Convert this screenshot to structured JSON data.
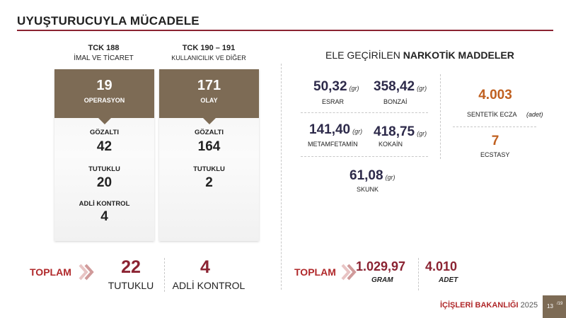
{
  "title": "UYUŞTURUCUYLA MÜCADELE",
  "tck188": {
    "head1": "TCK 188",
    "head2": "İMAL VE TİCARET",
    "top_value": "19",
    "top_label": "OPERASYON",
    "stats": [
      {
        "label": "GÖZALTI",
        "value": "42"
      },
      {
        "label": "TUTUKLU",
        "value": "20"
      },
      {
        "label": "ADLİ KONTROL",
        "value": "4"
      }
    ]
  },
  "tck190": {
    "head1": "TCK 190 – 191",
    "head2": "KULLANICILIK VE DİĞER",
    "top_value": "171",
    "top_label": "OLAY",
    "stats": [
      {
        "label": "GÖZALTI",
        "value": "164"
      },
      {
        "label": "TUTUKLU",
        "value": "2"
      }
    ]
  },
  "totals_left": {
    "label": "TOPLAM",
    "tutuklu_value": "22",
    "tutuklu_label": "TUTUKLU",
    "adli_value": "4",
    "adli_label": "ADLİ KONTROL"
  },
  "narcotics": {
    "title_prefix": "ELE GEÇİRİLEN",
    "title_bold": "NARKOTİK MADDELER",
    "items": [
      {
        "value": "50,32",
        "unit": "(gr)",
        "label": "ESRAR"
      },
      {
        "value": "358,42",
        "unit": "(gr)",
        "label": "BONZAİ"
      },
      {
        "value": "141,40",
        "unit": "(gr)",
        "label": "METAMFETAMİN"
      },
      {
        "value": "418,75",
        "unit": "(gr)",
        "label": "KOKAİN"
      },
      {
        "value": "61,08",
        "unit": "(gr)",
        "label": "SKUNK"
      }
    ],
    "sentetik": {
      "value": "4.003",
      "label": "SENTETİK ECZA",
      "unit": "(adet)"
    },
    "ecstasy": {
      "value": "7",
      "label": "ECSTASY"
    }
  },
  "totals_right": {
    "label": "TOPLAM",
    "gram_value": "1.029,97",
    "gram_label": "GRAM",
    "adet_value": "4.010",
    "adet_label": "ADET"
  },
  "footer": {
    "brand": "İÇİŞLERİ BAKANLIĞI",
    "year": "2025",
    "page": "13",
    "total_pages": "/19"
  },
  "colors": {
    "accent": "#8b2332",
    "card_header": "#7d6b55",
    "orange": "#c06020",
    "navy": "#2d2a4a"
  }
}
